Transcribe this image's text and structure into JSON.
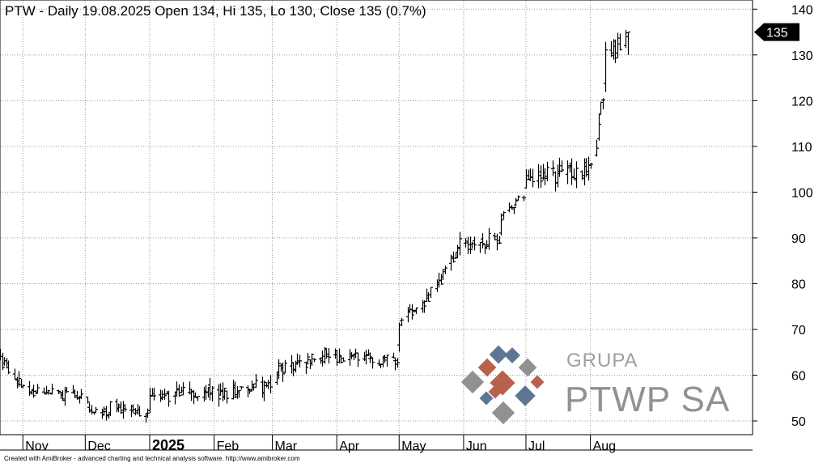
{
  "title": "PTW - Daily 19.08.2025 Open 134, Hi 135, Lo 130, Close 135 (0.7%)",
  "credit": "Created with AmiBroker - advanced charting and technical analysis software. http://www.amibroker.com",
  "logo": {
    "line1": "GRUPA",
    "line2": "PTWP SA",
    "colors": [
      "#8c8c8c",
      "#b35a46",
      "#566f8f"
    ]
  },
  "last_price_label": "135",
  "colors": {
    "bar": "#000000",
    "grid": "#9a9a9a",
    "label_bg": "#000000"
  },
  "chart_data": {
    "type": "ohlc",
    "title": "PTW - Daily 19.08.2025 Open 134, Hi 135, Lo 130, Close 135 (0.7%)",
    "ylim": [
      47,
      142
    ],
    "yticks": [
      50,
      60,
      70,
      80,
      90,
      100,
      110,
      120,
      130,
      140
    ],
    "xlim": [
      "2024-10-21",
      "2025-10-18"
    ],
    "month_ticks": [
      {
        "date": "2024-11-01",
        "label": "Nov"
      },
      {
        "date": "2024-12-01",
        "label": "Dec"
      },
      {
        "date": "2025-01-01",
        "label": "2025"
      },
      {
        "date": "2025-02-01",
        "label": "Feb"
      },
      {
        "date": "2025-03-01",
        "label": "Mar"
      },
      {
        "date": "2025-04-01",
        "label": "Apr"
      },
      {
        "date": "2025-05-01",
        "label": "May"
      },
      {
        "date": "2025-06-01",
        "label": "Jun"
      },
      {
        "date": "2025-07-01",
        "label": "Jul"
      },
      {
        "date": "2025-08-01",
        "label": "Aug"
      }
    ],
    "grid": true,
    "segments": [
      {
        "start": "2024-10-21",
        "end": "2024-10-31",
        "from": 64,
        "to": 57,
        "noise": 3
      },
      {
        "start": "2024-11-01",
        "end": "2024-11-30",
        "from": 57,
        "to": 55,
        "noise": 2.5
      },
      {
        "start": "2024-12-01",
        "end": "2024-12-12",
        "from": 53,
        "to": 51,
        "noise": 2.5
      },
      {
        "start": "2024-12-13",
        "end": "2024-12-31",
        "from": 53,
        "to": 51,
        "noise": 2.5
      },
      {
        "start": "2025-01-01",
        "end": "2025-01-31",
        "from": 55,
        "to": 57,
        "noise": 3
      },
      {
        "start": "2025-02-01",
        "end": "2025-02-28",
        "from": 56,
        "to": 58,
        "noise": 3
      },
      {
        "start": "2025-03-01",
        "end": "2025-03-31",
        "from": 61,
        "to": 65,
        "noise": 3
      },
      {
        "start": "2025-04-01",
        "end": "2025-04-30",
        "from": 64,
        "to": 63,
        "noise": 2.5
      },
      {
        "start": "2025-05-01",
        "end": "2025-05-15",
        "from": 72,
        "to": 77,
        "noise": 2.5
      },
      {
        "start": "2025-05-16",
        "end": "2025-05-31",
        "from": 78,
        "to": 89,
        "noise": 3
      },
      {
        "start": "2025-06-01",
        "end": "2025-06-18",
        "from": 88,
        "to": 90,
        "noise": 3
      },
      {
        "start": "2025-06-19",
        "end": "2025-06-30",
        "from": 95,
        "to": 99,
        "noise": 2.5
      },
      {
        "start": "2025-07-01",
        "end": "2025-07-31",
        "from": 103,
        "to": 105,
        "noise": 4
      },
      {
        "start": "2025-08-01",
        "end": "2025-08-07",
        "from": 105,
        "to": 122,
        "noise": 4
      },
      {
        "start": "2025-08-08",
        "end": "2025-08-19",
        "from": 130,
        "to": 133,
        "noise": 5
      }
    ],
    "last_bar": {
      "date": "2025-08-19",
      "open": 134,
      "high": 135,
      "low": 130,
      "close": 135
    }
  }
}
